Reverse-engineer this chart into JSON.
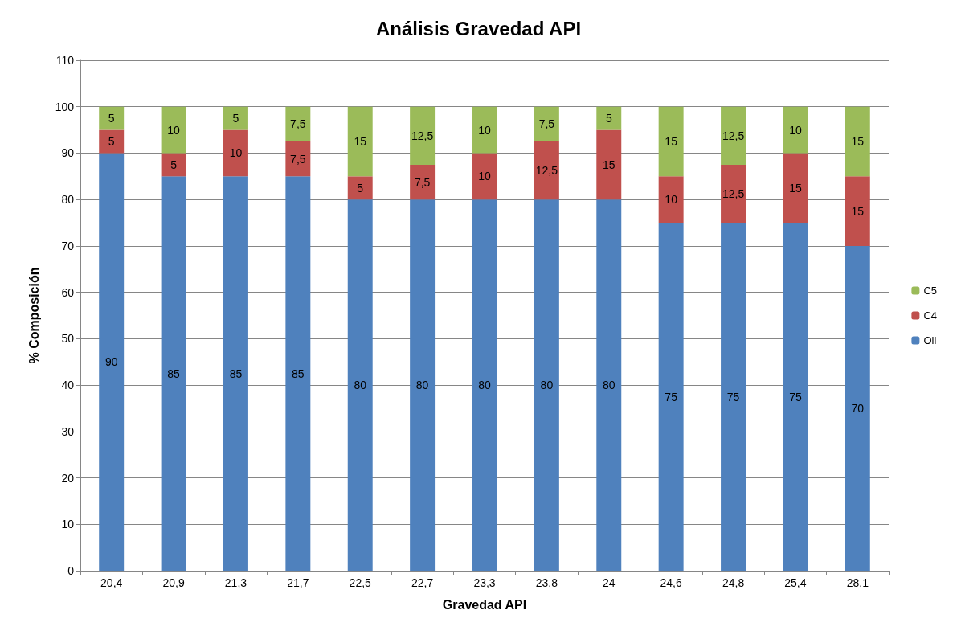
{
  "chart_data": {
    "type": "bar",
    "title": "Análisis Gravedad API",
    "xlabel": "Gravedad API",
    "ylabel": "% Composición",
    "categories": [
      "20,4",
      "20,9",
      "21,3",
      "21,7",
      "22,5",
      "22,7",
      "23,3",
      "23,8",
      "24",
      "24,6",
      "24,8",
      "25,4",
      "28,1"
    ],
    "stacked": true,
    "series": [
      {
        "name": "Oil",
        "color": "#4f81bd",
        "values": [
          90,
          85,
          85,
          85,
          80,
          80,
          80,
          80,
          80,
          75,
          75,
          75,
          70
        ],
        "value_labels": [
          "90",
          "85",
          "85",
          "85",
          "80",
          "80",
          "80",
          "80",
          "80",
          "75",
          "75",
          "75",
          "70"
        ]
      },
      {
        "name": "C4",
        "color": "#c0504d",
        "values": [
          5,
          5,
          10,
          7.5,
          5,
          7.5,
          10,
          12.5,
          15,
          10,
          12.5,
          15,
          15
        ],
        "value_labels": [
          "5",
          "5",
          "10",
          "7,5",
          "5",
          "7,5",
          "10",
          "12,5",
          "15",
          "10",
          "12,5",
          "15",
          "15"
        ]
      },
      {
        "name": "C5",
        "color": "#9bbb59",
        "values": [
          5,
          10,
          5,
          7.5,
          15,
          12.5,
          10,
          7.5,
          5,
          15,
          12.5,
          10,
          15
        ],
        "value_labels": [
          "5",
          "10",
          "5",
          "7,5",
          "15",
          "12,5",
          "10",
          "7,5",
          "5",
          "15",
          "12,5",
          "10",
          "15"
        ]
      }
    ],
    "ylim": [
      0,
      110
    ],
    "yticks": [
      0,
      10,
      20,
      30,
      40,
      50,
      60,
      70,
      80,
      90,
      100,
      110
    ],
    "grid": "y",
    "legend": "right"
  }
}
